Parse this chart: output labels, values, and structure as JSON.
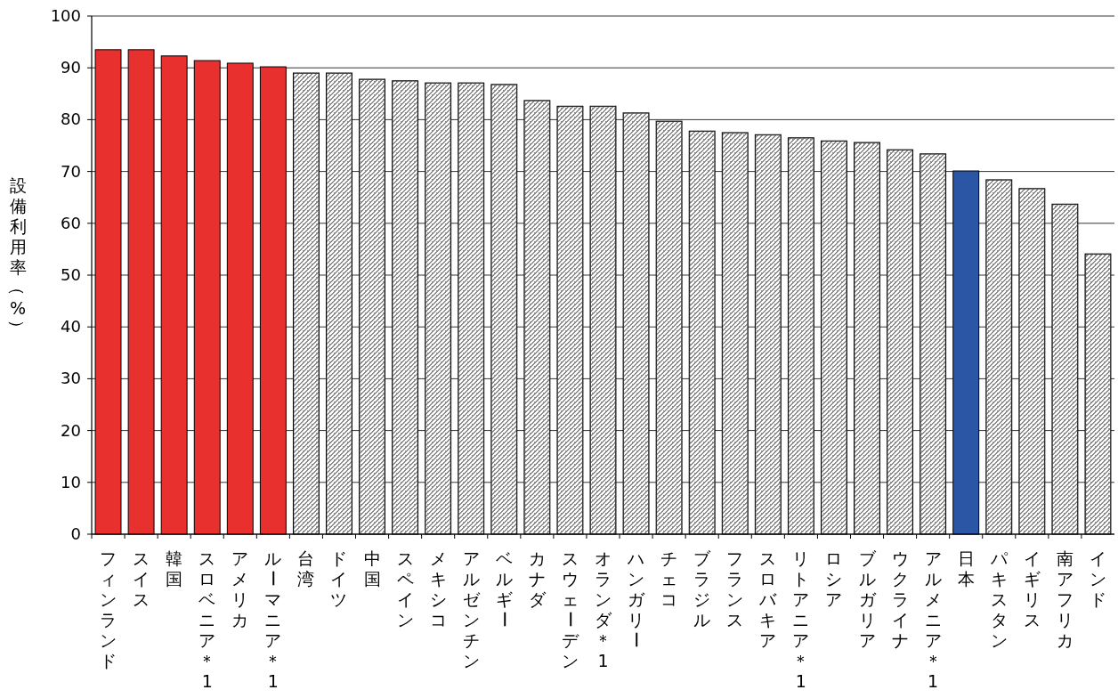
{
  "chart_data": {
    "type": "bar",
    "ylabel": "設備利用率（%）",
    "categories": [
      "フィンランド",
      "スイス",
      "韓国",
      "スロベニア＊1",
      "アメリカ",
      "ルーマニア＊1",
      "台湾",
      "ドイツ",
      "中国",
      "スペイン",
      "メキシコ",
      "アルゼンチン",
      "ベルギー",
      "カナダ",
      "スウェーデン",
      "オランダ＊1",
      "ハンガリー",
      "チェコ",
      "ブラジル",
      "フランス",
      "スロバキア",
      "リトアニア＊1",
      "ロシア",
      "ブルガリア",
      "ウクライナ",
      "アルメニア＊1",
      "日本",
      "パキスタン",
      "イギリス",
      "南アフリカ",
      "インド"
    ],
    "values": [
      93.5,
      93.5,
      92.3,
      91.4,
      90.9,
      90.2,
      89.0,
      89.0,
      87.8,
      87.5,
      87.1,
      87.1,
      86.8,
      83.7,
      82.6,
      82.6,
      81.3,
      79.7,
      77.8,
      77.5,
      77.1,
      76.5,
      75.9,
      75.6,
      74.2,
      73.4,
      70.1,
      68.4,
      66.7,
      63.7,
      54.1
    ],
    "colors": [
      "#e8302e",
      "#e8302e",
      "#e8302e",
      "#e8302e",
      "#e8302e",
      "#e8302e",
      "#8c8c8c",
      "#8c8c8c",
      "#8c8c8c",
      "#8c8c8c",
      "#8c8c8c",
      "#8c8c8c",
      "#8c8c8c",
      "#8c8c8c",
      "#8c8c8c",
      "#8c8c8c",
      "#8c8c8c",
      "#8c8c8c",
      "#8c8c8c",
      "#8c8c8c",
      "#8c8c8c",
      "#8c8c8c",
      "#8c8c8c",
      "#8c8c8c",
      "#8c8c8c",
      "#8c8c8c",
      "#2a56a5",
      "#8c8c8c",
      "#8c8c8c",
      "#8c8c8c",
      "#8c8c8c"
    ],
    "ylim": [
      0,
      100
    ],
    "yticks": [
      0,
      10,
      20,
      30,
      40,
      50,
      60,
      70,
      80,
      90,
      100
    ],
    "grid": "y"
  }
}
